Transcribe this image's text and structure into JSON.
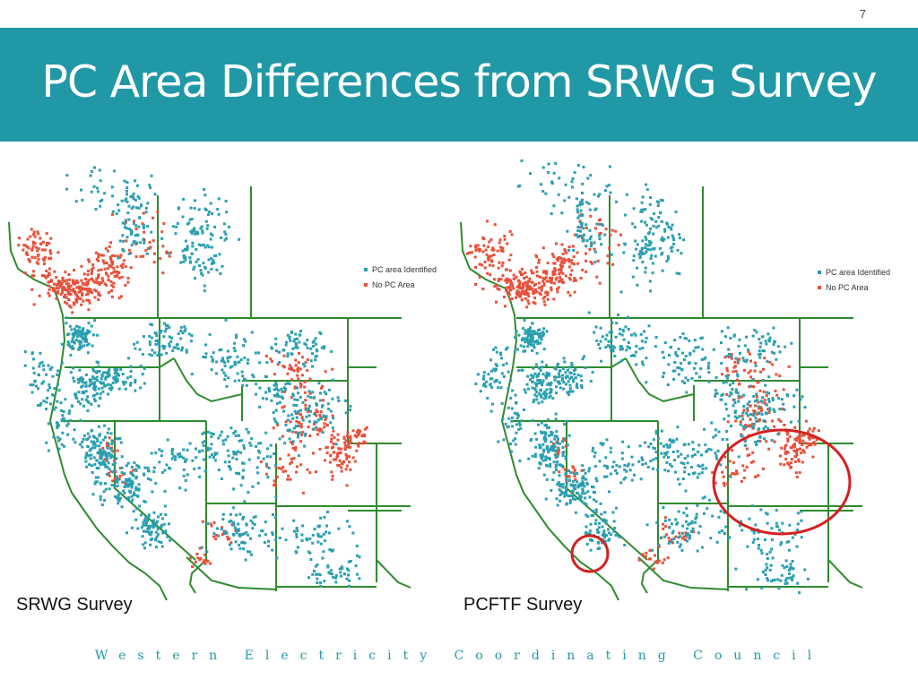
{
  "page_number": "7",
  "title": "PC Area Differences from SRWG Survey",
  "footer": "Western Electricity Coordinating Council",
  "colors": {
    "title_band": "#2198a6",
    "pc_area_identified": "#2a9fb0",
    "no_pc_area": "#e8503a",
    "boundary": "#2e8b2e",
    "highlight_circle": "#d42020",
    "footer_text": "#2198a6"
  },
  "legend": {
    "items": [
      {
        "label": "PC area Identified",
        "color": "#2a9fb0"
      },
      {
        "label": "No PC Area",
        "color": "#e8503a"
      }
    ]
  },
  "maps": [
    {
      "label": "SRWG Survey",
      "highlight_circles": false
    },
    {
      "label": "PCFTF Survey",
      "highlight_circles": true
    }
  ]
}
